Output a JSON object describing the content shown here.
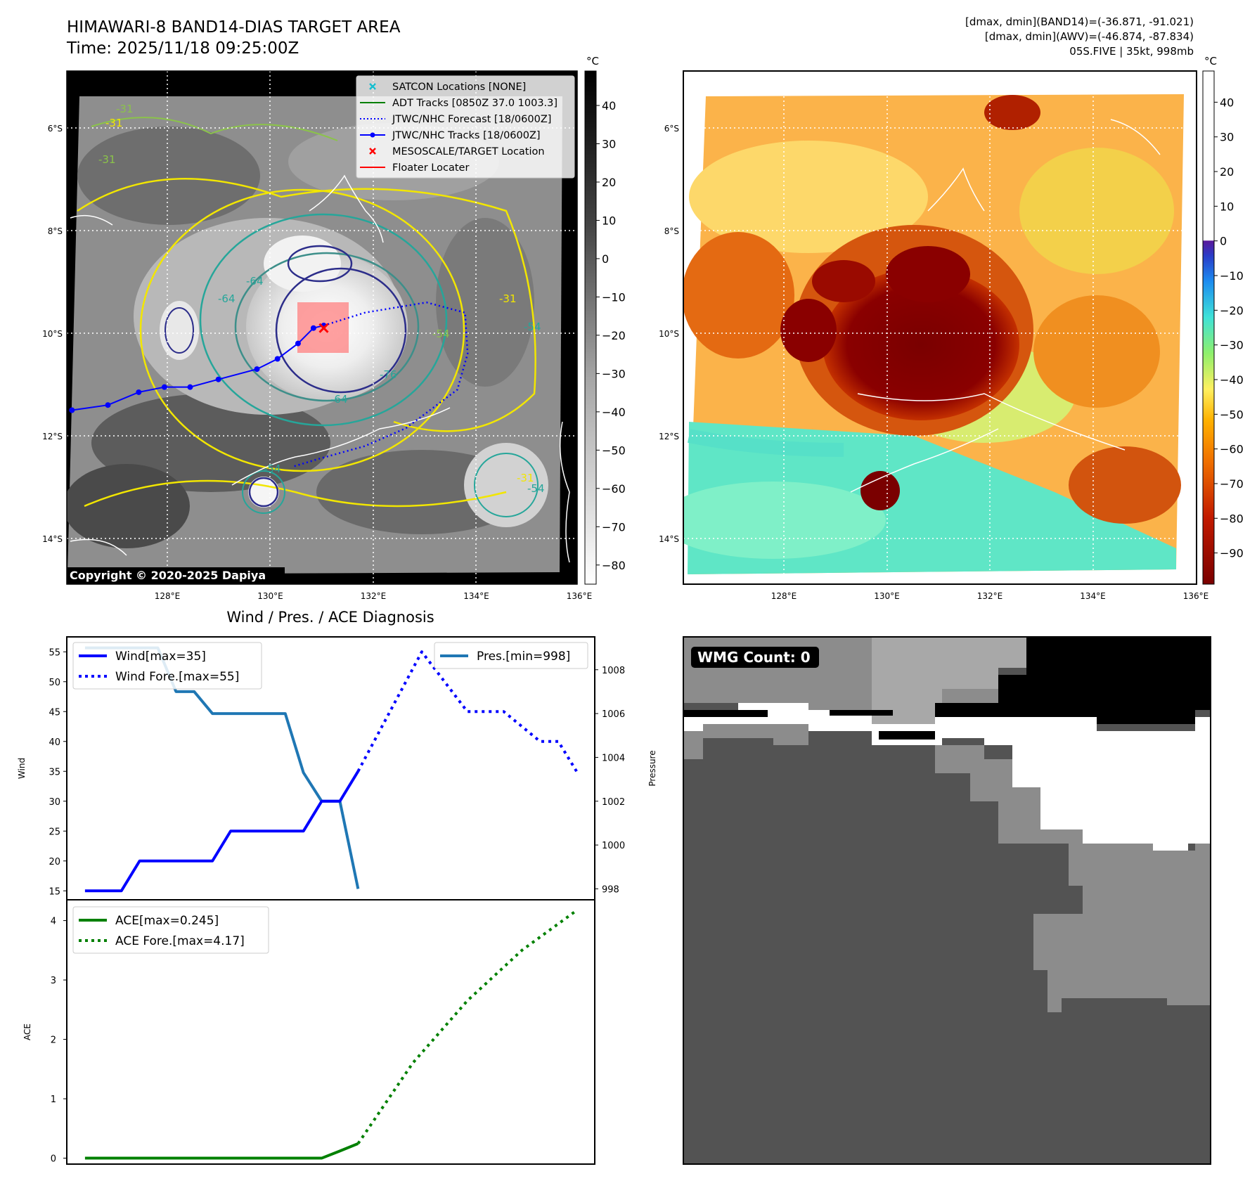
{
  "header": {
    "title": "HIMAWARI-8 BAND14-DIAS TARGET AREA",
    "time": "Time: 2025/11/18 09:25:00Z",
    "info_band14": "[dmax, dmin](BAND14)=(-36.871, -91.021)",
    "info_awv": "[dmax, dmin](AWV)=(-46.874, -87.834)",
    "info_storm": "05S.FIVE | 35kt, 998mb"
  },
  "ir_map": {
    "lat_ticks": [
      "6°S",
      "8°S",
      "10°S",
      "12°S",
      "14°S"
    ],
    "lon_ticks": [
      "128°E",
      "130°E",
      "132°E",
      "134°E",
      "136°E"
    ],
    "copyright": "Copyright © 2020-2025 Dapiya",
    "contour_labels": [
      "-31",
      "-31",
      "-31",
      "-31",
      "-54",
      "-64",
      "-64",
      "-64",
      "-76",
      "-54",
      "-54",
      "-31",
      "-54"
    ],
    "legend": [
      {
        "label": "SATCON Locations [NONE]",
        "color": "#17becf",
        "style": "x"
      },
      {
        "label": "ADT Tracks [0850Z 37.0 1003.3]",
        "color": "#008000",
        "style": "line"
      },
      {
        "label": "JTWC/NHC Forecast [18/0600Z]",
        "color": "#0000ff",
        "style": "dotted"
      },
      {
        "label": "JTWC/NHC Tracks [18/0600Z]",
        "color": "#0000ff",
        "style": "line-dot"
      },
      {
        "label": "MESOSCALE/TARGET Location",
        "color": "#ff0000",
        "style": "x"
      },
      {
        "label": "Floater Locater",
        "color": "#ff0000",
        "style": "line"
      }
    ],
    "best_track": [
      [
        126.1,
        -11.5
      ],
      [
        126.8,
        -11.4
      ],
      [
        127.4,
        -11.15
      ],
      [
        127.9,
        -11.05
      ],
      [
        128.4,
        -11.05
      ],
      [
        128.95,
        -10.9
      ],
      [
        129.7,
        -10.7
      ],
      [
        130.1,
        -10.5
      ],
      [
        130.5,
        -10.2
      ],
      [
        130.8,
        -9.9
      ],
      [
        131.0,
        -9.85
      ]
    ],
    "forecast_track": [
      [
        131.0,
        -9.85
      ],
      [
        131.8,
        -9.6
      ],
      [
        133.0,
        -9.4
      ],
      [
        133.75,
        -9.6
      ],
      [
        133.8,
        -10.4
      ],
      [
        133.6,
        -11.1
      ],
      [
        132.6,
        -11.85
      ],
      [
        131.8,
        -12.2
      ],
      [
        130.9,
        -12.45
      ],
      [
        130.4,
        -12.6
      ]
    ],
    "target": [
      131.0,
      -9.9
    ]
  },
  "ir_colorbar": {
    "unit": "°C",
    "ticks": [
      "40",
      "30",
      "20",
      "10",
      "0",
      "−10",
      "−20",
      "−30",
      "−40",
      "−50",
      "−60",
      "−70",
      "−80"
    ],
    "range": [
      -85,
      49
    ]
  },
  "awv_map": {
    "lat_ticks": [
      "6°S",
      "8°S",
      "10°S",
      "12°S",
      "14°S"
    ],
    "lon_ticks": [
      "128°E",
      "130°E",
      "132°E",
      "134°E",
      "136°E"
    ]
  },
  "awv_colorbar": {
    "unit": "°C",
    "ticks": [
      "40",
      "30",
      "20",
      "10",
      "0",
      "−10",
      "−20",
      "−30",
      "−40",
      "−50",
      "−60",
      "−70",
      "−80",
      "−90"
    ],
    "range": [
      -99,
      49
    ]
  },
  "wind_panel": {
    "title": "Wind / Pres. / ACE Diagnosis",
    "ylabel": "Wind",
    "ylabel_right": "Pressure"
  },
  "ace_panel": {
    "ylabel": "ACE"
  },
  "wmg_panel": {
    "label": "WMG Count: 0"
  },
  "chart_data": [
    {
      "type": "line",
      "panel": "wind",
      "ylabel": "Wind",
      "ylim": [
        13.5,
        57.5
      ],
      "yticks": [
        "15",
        "20",
        "25",
        "30",
        "35",
        "40",
        "45",
        "50",
        "55"
      ],
      "xlim": [
        -1,
        28
      ],
      "series": [
        {
          "name": "Wind[max=35]",
          "color": "#0000ff",
          "style": "solid",
          "axis": "left",
          "x": [
            0,
            2,
            3,
            7,
            8,
            12,
            13,
            14,
            15
          ],
          "y": [
            15,
            15,
            20,
            20,
            25,
            25,
            30,
            30,
            35
          ]
        },
        {
          "name": "Wind Fore.[max=55]",
          "color": "#0000ff",
          "style": "dotted",
          "axis": "left",
          "x": [
            15,
            18.5,
            21,
            23,
            24,
            25,
            26,
            27
          ],
          "y": [
            35,
            55,
            45,
            45,
            42.5,
            40,
            40,
            35
          ]
        }
      ]
    },
    {
      "type": "line",
      "panel": "pressure",
      "ylabel": "Pressure",
      "ylim": [
        997.5,
        1009.5
      ],
      "yticks": [
        "998",
        "1000",
        "1002",
        "1004",
        "1006",
        "1008"
      ],
      "series": [
        {
          "name": "Pres.[min=998]",
          "color": "#1f77b4",
          "style": "solid",
          "axis": "right",
          "x": [
            0,
            4,
            5,
            6,
            7,
            11,
            12,
            13,
            14,
            15
          ],
          "y": [
            1009,
            1009,
            1007,
            1007,
            1006,
            1006,
            1003.3,
            1002,
            1002,
            998
          ]
        }
      ]
    },
    {
      "type": "line",
      "panel": "ace",
      "ylabel": "ACE",
      "ylim": [
        -0.1,
        4.35
      ],
      "yticks": [
        "0",
        "1",
        "2",
        "3",
        "4"
      ],
      "series": [
        {
          "name": "ACE[max=0.245]",
          "color": "#008000",
          "style": "solid",
          "x": [
            0,
            13,
            14,
            15
          ],
          "y": [
            0,
            0,
            0.12,
            0.245
          ]
        },
        {
          "name": "ACE Fore.[max=4.17]",
          "color": "#008000",
          "style": "dotted",
          "x": [
            15,
            18,
            21,
            24,
            27
          ],
          "y": [
            0.245,
            1.6,
            2.65,
            3.5,
            4.17
          ]
        }
      ]
    }
  ]
}
